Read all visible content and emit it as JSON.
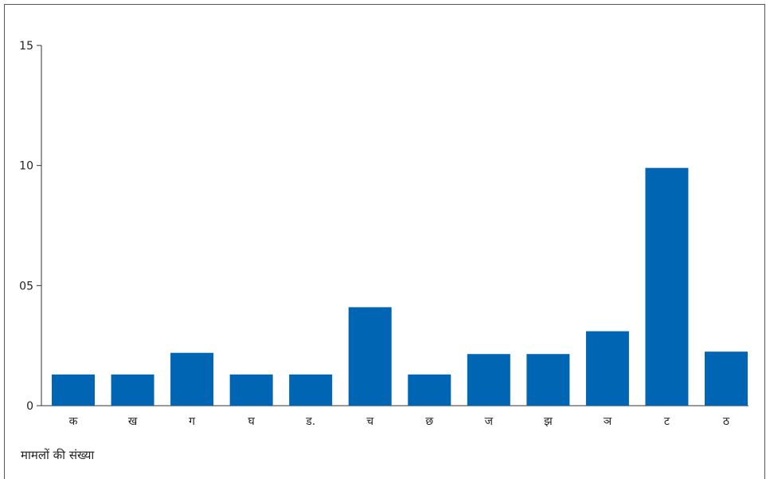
{
  "chart_data": {
    "type": "bar",
    "categories": [
      "क",
      "ख",
      "ग",
      "घ",
      "ड.",
      "च",
      "छ",
      "ज",
      "झ",
      "ञ",
      "ट",
      "ठ"
    ],
    "values": [
      1.3,
      1.3,
      2.2,
      1.3,
      1.3,
      4.1,
      1.3,
      2.15,
      2.15,
      3.1,
      9.9,
      2.25
    ],
    "ylabel": "मामलों की संख्या",
    "ylim": [
      0,
      15
    ],
    "yticks": [
      0,
      5,
      10,
      15
    ],
    "ytick_labels": [
      "0",
      "05",
      "10",
      "15"
    ],
    "bar_color": "#0066b3",
    "grid": false
  }
}
